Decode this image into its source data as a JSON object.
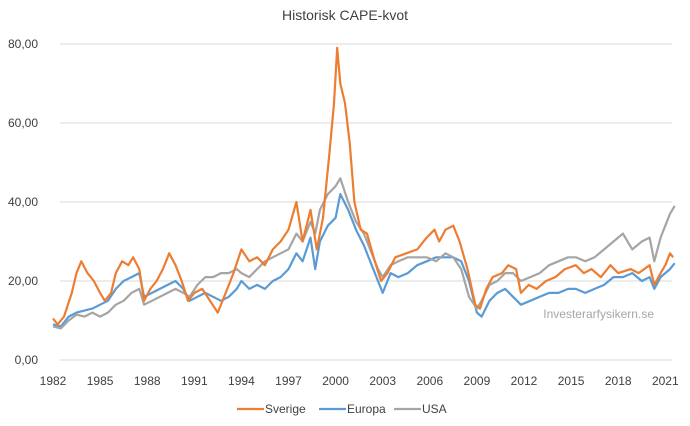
{
  "chart_data": {
    "type": "line",
    "title": "Historisk CAPE-kvot",
    "xlabel": "",
    "ylabel": "",
    "ylim": [
      0,
      80
    ],
    "xlim": [
      1982,
      2021.7
    ],
    "y_ticks": [
      "0,00",
      "20,00",
      "40,00",
      "60,00",
      "80,00"
    ],
    "y_tick_values": [
      0,
      20,
      40,
      60,
      80
    ],
    "x_ticks": [
      "1982",
      "1985",
      "1988",
      "1991",
      "1994",
      "1997",
      "2000",
      "2003",
      "2006",
      "2009",
      "2012",
      "2015",
      "2018",
      "2021"
    ],
    "x_tick_values": [
      1982,
      1985,
      1988,
      1991,
      1994,
      1997,
      2000,
      2003,
      2006,
      2009,
      2012,
      2015,
      2018,
      2021
    ],
    "grid": true,
    "legend_position": "bottom",
    "annotation": "Investerarfysikern.se",
    "series": [
      {
        "name": "Sverige",
        "color": "#ED7D31",
        "x": [
          1982.0,
          1982.3,
          1982.7,
          1983.2,
          1983.5,
          1983.8,
          1984.2,
          1984.6,
          1985.0,
          1985.3,
          1985.7,
          1986.0,
          1986.4,
          1986.8,
          1987.1,
          1987.5,
          1987.8,
          1988.2,
          1988.6,
          1989.0,
          1989.4,
          1989.8,
          1990.2,
          1990.6,
          1991.0,
          1991.5,
          1992.0,
          1992.5,
          1993.0,
          1993.5,
          1994.0,
          1994.5,
          1995.0,
          1995.5,
          1996.0,
          1996.5,
          1997.0,
          1997.5,
          1997.9,
          1998.4,
          1998.8,
          1999.2,
          1999.6,
          1999.9,
          2000.1,
          2000.3,
          2000.6,
          2000.9,
          2001.2,
          2001.6,
          2002.0,
          2002.5,
          2002.9,
          2003.3,
          2003.8,
          2004.5,
          2005.2,
          2005.8,
          2006.3,
          2006.6,
          2007.0,
          2007.5,
          2007.9,
          2008.4,
          2008.9,
          2009.2,
          2009.6,
          2010.0,
          2010.6,
          2011.0,
          2011.5,
          2011.8,
          2012.3,
          2012.8,
          2013.4,
          2014.0,
          2014.6,
          2015.3,
          2015.8,
          2016.3,
          2016.9,
          2017.5,
          2018.0,
          2018.8,
          2019.3,
          2020.0,
          2020.3,
          2020.7,
          2021.0,
          2021.3,
          2021.5
        ],
        "values": [
          10.5,
          9,
          11,
          17,
          22,
          25,
          22,
          20,
          17,
          15,
          17,
          22,
          25,
          24,
          26,
          23,
          15,
          18,
          20,
          23,
          27,
          24,
          20,
          15,
          17,
          18,
          15,
          12,
          17,
          22,
          28,
          25,
          26,
          24,
          28,
          30,
          33,
          40,
          30,
          38,
          28,
          36,
          52,
          65,
          79,
          70,
          65,
          55,
          40,
          33,
          32,
          25,
          20,
          22,
          26,
          27,
          28,
          31,
          33,
          30,
          33,
          34,
          30,
          23,
          14,
          13,
          18,
          21,
          22,
          24,
          23,
          17,
          19,
          18,
          20,
          21,
          23,
          24,
          22,
          23,
          21,
          24,
          22,
          23,
          22,
          24,
          19,
          22,
          24,
          27,
          26
        ]
      },
      {
        "name": "Europa",
        "color": "#5B9BD5",
        "x": [
          1982.0,
          1982.5,
          1983.0,
          1983.5,
          1984.0,
          1984.5,
          1985.0,
          1985.5,
          1986.0,
          1986.5,
          1987.0,
          1987.5,
          1987.8,
          1988.3,
          1988.8,
          1989.3,
          1989.8,
          1990.3,
          1990.7,
          1991.2,
          1991.7,
          1992.2,
          1992.7,
          1993.2,
          1993.7,
          1994.0,
          1994.5,
          1995.0,
          1995.5,
          1996.0,
          1996.5,
          1997.0,
          1997.5,
          1997.9,
          1998.4,
          1998.7,
          1999.0,
          1999.5,
          2000.0,
          2000.3,
          2000.8,
          2001.3,
          2001.8,
          2002.3,
          2002.7,
          2003.0,
          2003.5,
          2004.0,
          2004.6,
          2005.2,
          2005.8,
          2006.4,
          2007.0,
          2007.5,
          2008.0,
          2008.5,
          2009.0,
          2009.3,
          2009.8,
          2010.3,
          2010.8,
          2011.3,
          2011.8,
          2012.4,
          2013.0,
          2013.6,
          2014.2,
          2014.8,
          2015.3,
          2015.9,
          2016.5,
          2017.1,
          2017.7,
          2018.3,
          2018.9,
          2019.5,
          2020.0,
          2020.3,
          2020.7,
          2021.0,
          2021.3,
          2021.6
        ],
        "values": [
          9,
          8.5,
          11,
          12,
          12.5,
          13,
          14,
          15,
          18,
          20,
          21,
          22,
          16,
          17,
          18,
          19,
          20,
          18,
          15,
          16,
          17,
          16,
          15,
          16,
          18,
          20,
          18,
          19,
          18,
          20,
          21,
          23,
          27,
          25,
          31,
          23,
          30,
          34,
          36,
          42,
          38,
          33,
          29,
          24,
          20,
          17,
          22,
          21,
          22,
          24,
          25,
          26,
          26,
          26,
          25,
          20,
          12,
          11,
          15,
          17,
          18,
          16,
          14,
          15,
          16,
          17,
          17,
          18,
          18,
          17,
          18,
          19,
          21,
          21,
          22,
          20,
          21,
          18,
          21,
          22,
          23,
          24.5
        ]
      },
      {
        "name": "USA",
        "color": "#A5A5A5",
        "x": [
          1982.0,
          1982.5,
          1983.0,
          1983.5,
          1984.0,
          1984.5,
          1985.0,
          1985.5,
          1986.0,
          1986.5,
          1987.0,
          1987.5,
          1987.8,
          1988.3,
          1988.8,
          1989.3,
          1989.8,
          1990.3,
          1990.7,
          1991.2,
          1991.7,
          1992.2,
          1992.7,
          1993.2,
          1993.7,
          1994.0,
          1994.5,
          1995.0,
          1995.5,
          1996.0,
          1996.5,
          1997.0,
          1997.5,
          1997.9,
          1998.4,
          1998.7,
          1999.0,
          1999.5,
          2000.0,
          2000.3,
          2000.8,
          2001.3,
          2001.8,
          2002.3,
          2002.7,
          2003.0,
          2003.5,
          2004.0,
          2004.6,
          2005.2,
          2005.8,
          2006.4,
          2007.0,
          2007.5,
          2008.0,
          2008.5,
          2009.0,
          2009.3,
          2009.8,
          2010.3,
          2010.8,
          2011.3,
          2011.8,
          2012.4,
          2013.0,
          2013.6,
          2014.2,
          2014.8,
          2015.3,
          2015.9,
          2016.5,
          2017.1,
          2017.7,
          2018.3,
          2018.9,
          2019.5,
          2020.0,
          2020.3,
          2020.7,
          2021.0,
          2021.3,
          2021.6
        ],
        "values": [
          8.5,
          8,
          10,
          11.5,
          11,
          12,
          11,
          12,
          14,
          15,
          17,
          18,
          14,
          15,
          16,
          17,
          18,
          17,
          16,
          19,
          21,
          21,
          22,
          22,
          23,
          22,
          21,
          23,
          25,
          26,
          27,
          28,
          32,
          30,
          35,
          32,
          38,
          42,
          44,
          46,
          40,
          35,
          32,
          27,
          23,
          21,
          24,
          25,
          26,
          26,
          26,
          25,
          27,
          26,
          23,
          16,
          13,
          15,
          19,
          20,
          22,
          22,
          20,
          21,
          22,
          24,
          25,
          26,
          26,
          25,
          26,
          28,
          30,
          32,
          28,
          30,
          31,
          25,
          31,
          34,
          37,
          39
        ]
      }
    ]
  }
}
